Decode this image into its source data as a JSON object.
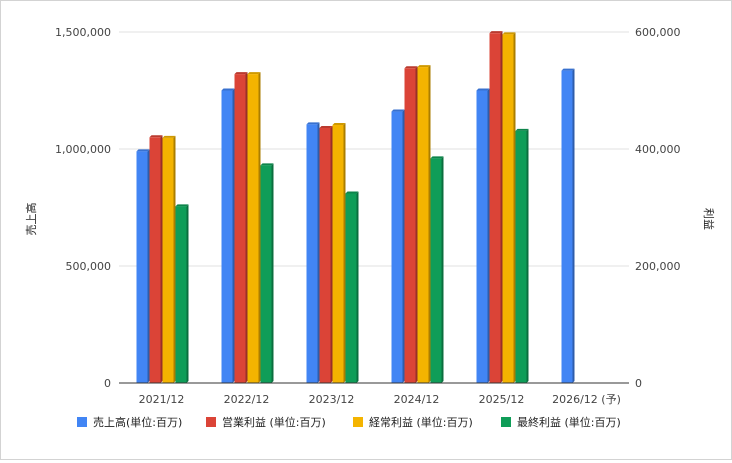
{
  "chart_data": {
    "type": "bar",
    "categories": [
      "2021/12",
      "2022/12",
      "2023/12",
      "2024/12",
      "2025/12",
      "2026/12 (予)"
    ],
    "ylabel_left": "売上高",
    "ylabel_right": "利益",
    "left_ticks": [
      "0",
      "500,000",
      "1,000,000",
      "1,500,000"
    ],
    "right_ticks": [
      "0",
      "200,000",
      "400,000",
      "600,000"
    ],
    "ylim_left": [
      0,
      1500000
    ],
    "ylim_right": [
      0,
      600000
    ],
    "grid": true,
    "legend_position": "bottom",
    "series": [
      {
        "name": "売上高(単位:百万)",
        "axis": "left",
        "color": "#4285f4",
        "values": [
          990000,
          1250000,
          1105000,
          1160000,
          1250000,
          1335000
        ]
      },
      {
        "name": "営業利益 (単位:百万)",
        "axis": "right",
        "color": "#db4437",
        "values": [
          420000,
          528000,
          436000,
          538000,
          598000,
          null
        ]
      },
      {
        "name": "経常利益 (単位:百万)",
        "axis": "right",
        "color": "#f4b400",
        "values": [
          419000,
          528000,
          441000,
          540000,
          596000,
          null
        ]
      },
      {
        "name": "最終利益 (単位:百万)",
        "axis": "right",
        "color": "#0f9d58",
        "values": [
          302000,
          372000,
          324000,
          384000,
          431000,
          null
        ]
      }
    ]
  }
}
